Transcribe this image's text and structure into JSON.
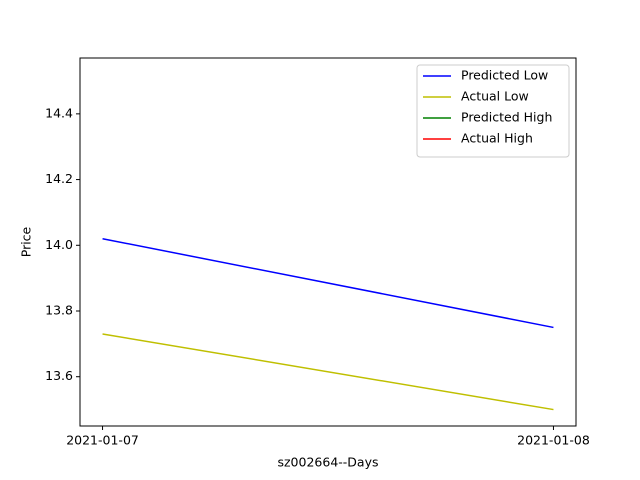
{
  "chart_data": {
    "type": "line",
    "xlabel": "sz002664--Days",
    "ylabel": "Price",
    "categories": [
      "2021-01-07",
      "2021-01-08"
    ],
    "series": [
      {
        "name": "Predicted Low",
        "color": "#0000ff",
        "values": [
          14.02,
          13.75
        ]
      },
      {
        "name": "Actual Low",
        "color": "#bfbf00",
        "values": [
          13.73,
          13.5
        ]
      },
      {
        "name": "Predicted High",
        "color": "#008000",
        "values": [
          null,
          null
        ]
      },
      {
        "name": "Actual High",
        "color": "#ff0000",
        "values": [
          null,
          null
        ]
      }
    ],
    "ylim": [
      13.45,
      14.57
    ],
    "yticks": [
      {
        "value": 13.6,
        "label": "13.6"
      },
      {
        "value": 13.8,
        "label": "13.8"
      },
      {
        "value": 14.0,
        "label": "14.0"
      },
      {
        "value": 14.2,
        "label": "14.2"
      },
      {
        "value": 14.4,
        "label": "14.4"
      }
    ],
    "legend": "upper right"
  }
}
